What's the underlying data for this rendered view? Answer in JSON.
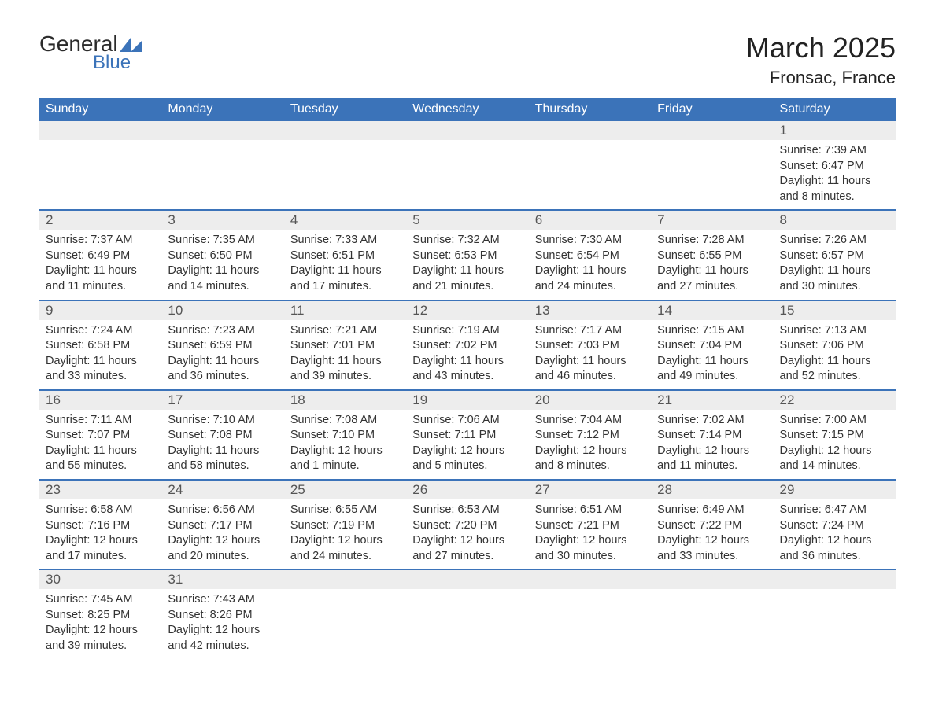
{
  "logo": {
    "text_general": "General",
    "text_blue": "Blue",
    "shape_color": "#3b73b9"
  },
  "title": {
    "month": "March 2025",
    "location": "Fronsac, France"
  },
  "colors": {
    "header_bg": "#3b73b9",
    "header_text": "#ffffff",
    "daynum_bg": "#ededed",
    "row_border": "#3b73b9",
    "body_text": "#333333"
  },
  "fonts": {
    "family": "Arial, Helvetica, sans-serif",
    "title_size_pt": 27,
    "location_size_pt": 17,
    "dayheader_size_pt": 12,
    "daynum_size_pt": 13,
    "details_size_pt": 11
  },
  "day_headers": [
    "Sunday",
    "Monday",
    "Tuesday",
    "Wednesday",
    "Thursday",
    "Friday",
    "Saturday"
  ],
  "weeks": [
    [
      null,
      null,
      null,
      null,
      null,
      null,
      {
        "n": "1",
        "sr": "7:39 AM",
        "ss": "6:47 PM",
        "dl": "11 hours and 8 minutes."
      }
    ],
    [
      {
        "n": "2",
        "sr": "7:37 AM",
        "ss": "6:49 PM",
        "dl": "11 hours and 11 minutes."
      },
      {
        "n": "3",
        "sr": "7:35 AM",
        "ss": "6:50 PM",
        "dl": "11 hours and 14 minutes."
      },
      {
        "n": "4",
        "sr": "7:33 AM",
        "ss": "6:51 PM",
        "dl": "11 hours and 17 minutes."
      },
      {
        "n": "5",
        "sr": "7:32 AM",
        "ss": "6:53 PM",
        "dl": "11 hours and 21 minutes."
      },
      {
        "n": "6",
        "sr": "7:30 AM",
        "ss": "6:54 PM",
        "dl": "11 hours and 24 minutes."
      },
      {
        "n": "7",
        "sr": "7:28 AM",
        "ss": "6:55 PM",
        "dl": "11 hours and 27 minutes."
      },
      {
        "n": "8",
        "sr": "7:26 AM",
        "ss": "6:57 PM",
        "dl": "11 hours and 30 minutes."
      }
    ],
    [
      {
        "n": "9",
        "sr": "7:24 AM",
        "ss": "6:58 PM",
        "dl": "11 hours and 33 minutes."
      },
      {
        "n": "10",
        "sr": "7:23 AM",
        "ss": "6:59 PM",
        "dl": "11 hours and 36 minutes."
      },
      {
        "n": "11",
        "sr": "7:21 AM",
        "ss": "7:01 PM",
        "dl": "11 hours and 39 minutes."
      },
      {
        "n": "12",
        "sr": "7:19 AM",
        "ss": "7:02 PM",
        "dl": "11 hours and 43 minutes."
      },
      {
        "n": "13",
        "sr": "7:17 AM",
        "ss": "7:03 PM",
        "dl": "11 hours and 46 minutes."
      },
      {
        "n": "14",
        "sr": "7:15 AM",
        "ss": "7:04 PM",
        "dl": "11 hours and 49 minutes."
      },
      {
        "n": "15",
        "sr": "7:13 AM",
        "ss": "7:06 PM",
        "dl": "11 hours and 52 minutes."
      }
    ],
    [
      {
        "n": "16",
        "sr": "7:11 AM",
        "ss": "7:07 PM",
        "dl": "11 hours and 55 minutes."
      },
      {
        "n": "17",
        "sr": "7:10 AM",
        "ss": "7:08 PM",
        "dl": "11 hours and 58 minutes."
      },
      {
        "n": "18",
        "sr": "7:08 AM",
        "ss": "7:10 PM",
        "dl": "12 hours and 1 minute."
      },
      {
        "n": "19",
        "sr": "7:06 AM",
        "ss": "7:11 PM",
        "dl": "12 hours and 5 minutes."
      },
      {
        "n": "20",
        "sr": "7:04 AM",
        "ss": "7:12 PM",
        "dl": "12 hours and 8 minutes."
      },
      {
        "n": "21",
        "sr": "7:02 AM",
        "ss": "7:14 PM",
        "dl": "12 hours and 11 minutes."
      },
      {
        "n": "22",
        "sr": "7:00 AM",
        "ss": "7:15 PM",
        "dl": "12 hours and 14 minutes."
      }
    ],
    [
      {
        "n": "23",
        "sr": "6:58 AM",
        "ss": "7:16 PM",
        "dl": "12 hours and 17 minutes."
      },
      {
        "n": "24",
        "sr": "6:56 AM",
        "ss": "7:17 PM",
        "dl": "12 hours and 20 minutes."
      },
      {
        "n": "25",
        "sr": "6:55 AM",
        "ss": "7:19 PM",
        "dl": "12 hours and 24 minutes."
      },
      {
        "n": "26",
        "sr": "6:53 AM",
        "ss": "7:20 PM",
        "dl": "12 hours and 27 minutes."
      },
      {
        "n": "27",
        "sr": "6:51 AM",
        "ss": "7:21 PM",
        "dl": "12 hours and 30 minutes."
      },
      {
        "n": "28",
        "sr": "6:49 AM",
        "ss": "7:22 PM",
        "dl": "12 hours and 33 minutes."
      },
      {
        "n": "29",
        "sr": "6:47 AM",
        "ss": "7:24 PM",
        "dl": "12 hours and 36 minutes."
      }
    ],
    [
      {
        "n": "30",
        "sr": "7:45 AM",
        "ss": "8:25 PM",
        "dl": "12 hours and 39 minutes."
      },
      {
        "n": "31",
        "sr": "7:43 AM",
        "ss": "8:26 PM",
        "dl": "12 hours and 42 minutes."
      },
      null,
      null,
      null,
      null,
      null
    ]
  ],
  "labels": {
    "sunrise": "Sunrise:",
    "sunset": "Sunset:",
    "daylight": "Daylight:"
  }
}
